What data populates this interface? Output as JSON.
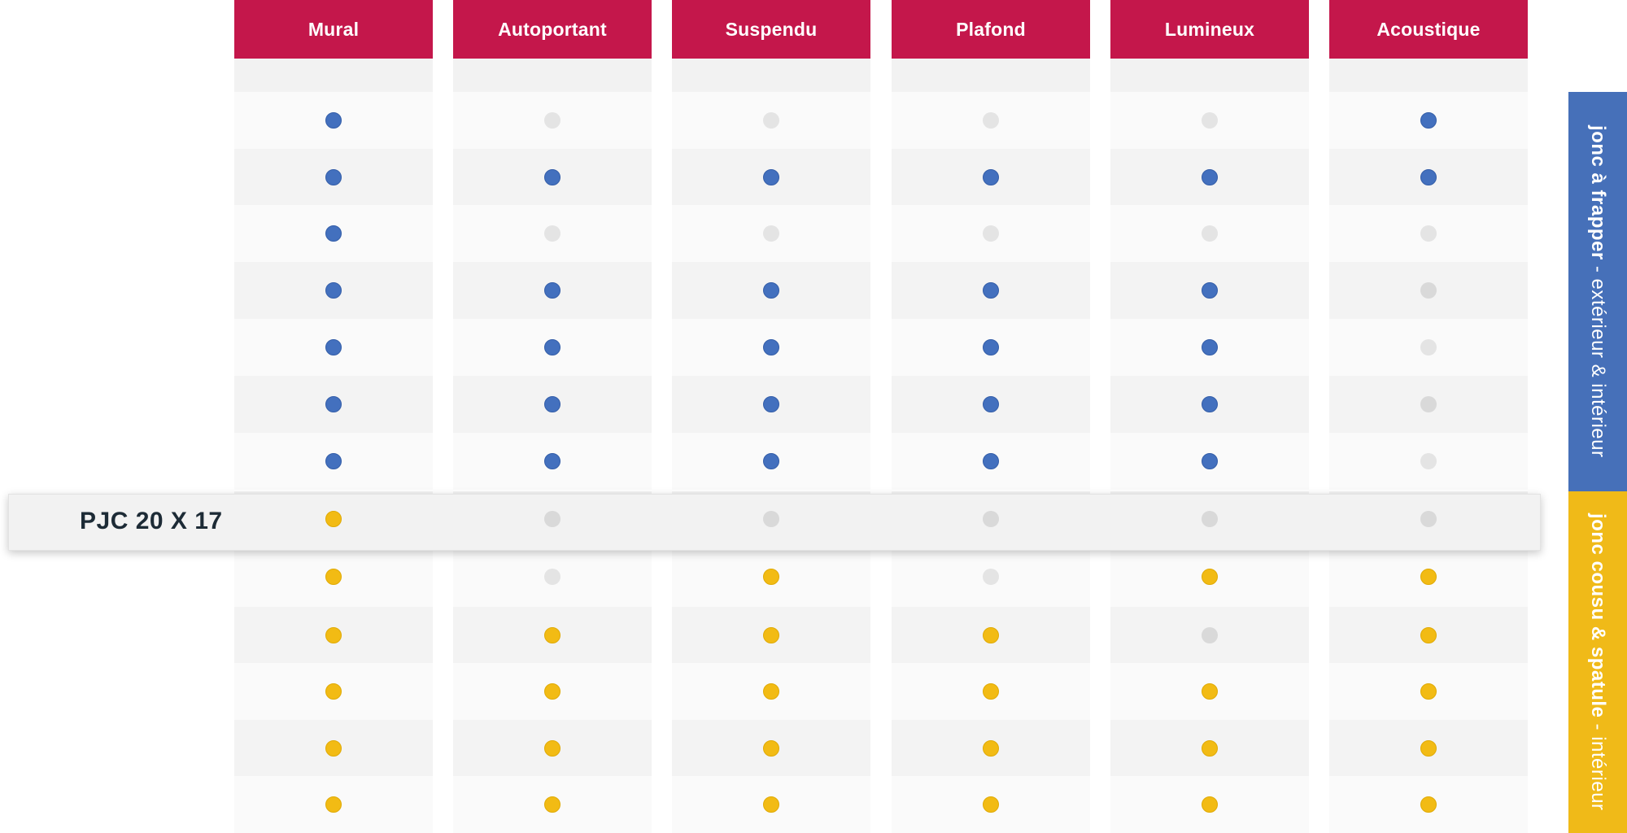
{
  "columns": [
    "Mural",
    "Autoportant",
    "Suspendu",
    "Plafond",
    "Lumineux",
    "Acoustique"
  ],
  "highlight": {
    "label": "PJC 20 X 17"
  },
  "groups": [
    {
      "bold": "jonc à frapper",
      "separator": " - ",
      "rest": "extérieur & intérieur",
      "color": "#4670b9"
    },
    {
      "bold": "jonc cousu & spatule",
      "separator": " - ",
      "rest": "intérieur",
      "color": "#f0ba18"
    }
  ],
  "colors": {
    "header": "#c4174b",
    "blue_dot": "#4370be",
    "yellow_dot": "#f2bb14",
    "off_dot": "#e4e4e4"
  },
  "rows": [
    {
      "group": "blue",
      "values": [
        1,
        0,
        0,
        0,
        0,
        1
      ]
    },
    {
      "group": "blue",
      "values": [
        1,
        1,
        1,
        1,
        1,
        1
      ]
    },
    {
      "group": "blue",
      "values": [
        1,
        0,
        0,
        0,
        0,
        0
      ]
    },
    {
      "group": "blue",
      "values": [
        1,
        1,
        1,
        1,
        1,
        0
      ]
    },
    {
      "group": "blue",
      "values": [
        1,
        1,
        1,
        1,
        1,
        0
      ]
    },
    {
      "group": "blue",
      "values": [
        1,
        1,
        1,
        1,
        1,
        0
      ]
    },
    {
      "group": "blue",
      "values": [
        1,
        1,
        1,
        1,
        1,
        0
      ]
    },
    {
      "group": "yellow",
      "values": [
        1,
        0,
        0,
        0,
        0,
        0
      ]
    },
    {
      "group": "yellow",
      "values": [
        1,
        0,
        1,
        0,
        1,
        1
      ]
    },
    {
      "group": "yellow",
      "values": [
        1,
        1,
        1,
        1,
        0,
        1
      ]
    },
    {
      "group": "yellow",
      "values": [
        1,
        1,
        1,
        1,
        1,
        1
      ]
    },
    {
      "group": "yellow",
      "values": [
        1,
        1,
        1,
        1,
        1,
        1
      ]
    },
    {
      "group": "yellow",
      "values": [
        1,
        1,
        1,
        1,
        1,
        1
      ]
    }
  ]
}
